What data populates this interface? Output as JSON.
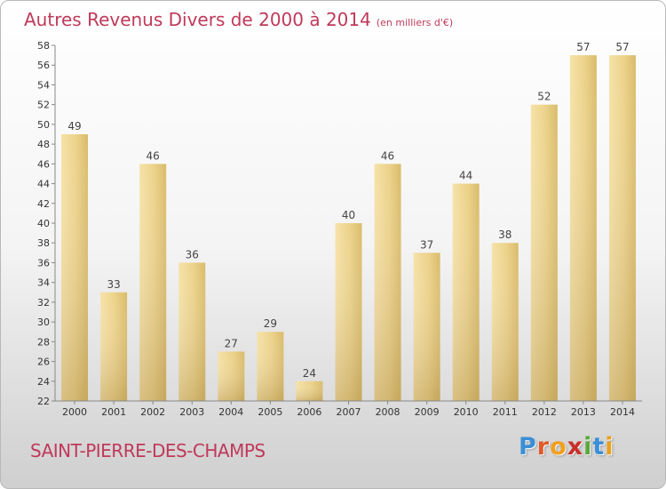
{
  "chart_data": {
    "type": "bar",
    "title": "Autres Revenus Divers de 2000 à 2014",
    "subtitle": "(en milliers d'€)",
    "categories": [
      "2000",
      "2001",
      "2002",
      "2003",
      "2004",
      "2005",
      "2006",
      "2007",
      "2008",
      "2009",
      "2010",
      "2011",
      "2012",
      "2013",
      "2014"
    ],
    "values": [
      49,
      33,
      46,
      36,
      27,
      29,
      24,
      40,
      46,
      37,
      44,
      38,
      52,
      57,
      57
    ],
    "ylim": [
      22,
      58
    ],
    "yticks": [
      22,
      24,
      26,
      28,
      30,
      32,
      34,
      36,
      38,
      40,
      42,
      44,
      46,
      48,
      50,
      52,
      54,
      56,
      58
    ],
    "grid": false,
    "bar_color": "#e8cd7e"
  },
  "footer": {
    "place_name": "SAINT-PIERRE-DES-CHAMPS",
    "logo_letters": [
      {
        "char": "P",
        "color": "#3b8fd6"
      },
      {
        "char": "r",
        "color": "#e05a2a"
      },
      {
        "char": "o",
        "color": "#f0a020"
      },
      {
        "char": "x",
        "color": "#c8302a"
      },
      {
        "char": "i",
        "color": "#5aa83a"
      },
      {
        "char": "t",
        "color": "#3b8fd6"
      },
      {
        "char": "i",
        "color": "#e8a020"
      }
    ]
  }
}
